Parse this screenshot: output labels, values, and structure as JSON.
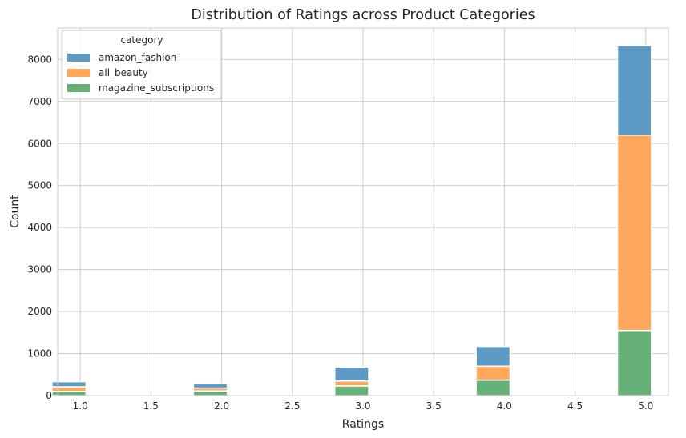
{
  "chart_data": {
    "type": "bar",
    "stacked": true,
    "title": "Distribution of Ratings across Product Categories",
    "xlabel": "Ratings",
    "ylabel": "Count",
    "xlim": [
      0.84,
      5.16
    ],
    "ylim": [
      0,
      8750
    ],
    "xticks": [
      "1.0",
      "1.5",
      "2.0",
      "2.5",
      "3.0",
      "3.5",
      "4.0",
      "4.5",
      "5.0"
    ],
    "yticks": [
      "0",
      "1000",
      "2000",
      "3000",
      "4000",
      "5000",
      "6000",
      "7000",
      "8000"
    ],
    "grid": true,
    "legend_title": "category",
    "legend_position": "top-left",
    "x": [
      1,
      2,
      3,
      4,
      5
    ],
    "series": [
      {
        "name": "magazine_subscriptions",
        "color": "#55a868",
        "values": [
          100,
          110,
          230,
          370,
          1550
        ]
      },
      {
        "name": "all_beauty",
        "color": "#ff9f4a",
        "values": [
          110,
          70,
          120,
          330,
          4650
        ]
      },
      {
        "name": "amazon_fashion",
        "color": "#4c8fc0",
        "values": [
          120,
          100,
          330,
          470,
          2130
        ]
      }
    ],
    "legend_order": [
      "amazon_fashion",
      "all_beauty",
      "magazine_subscriptions"
    ]
  }
}
